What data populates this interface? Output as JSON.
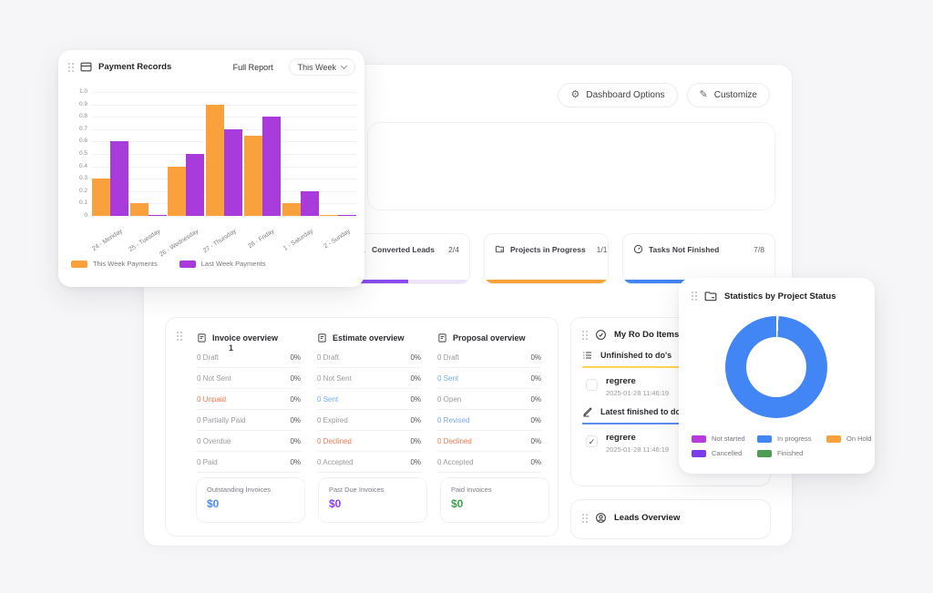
{
  "header_actions": {
    "dashboard_options": "Dashboard Options",
    "customize": "Customize"
  },
  "payment_records": {
    "title": "Payment Records",
    "full_report_label": "Full Report",
    "period_selector": "This Week",
    "chart_data": {
      "type": "bar",
      "categories": [
        "24 - Monday",
        "25 - Tuesday",
        "26 - Wednesday",
        "27 - Thursday",
        "28 - Friday",
        "1 - Saturday",
        "2 - Sunday"
      ],
      "series": [
        {
          "name": "This Week Payments",
          "color": "#F9A13C",
          "values": [
            0.3,
            0.1,
            0.4,
            0.9,
            0.65,
            0.1,
            0.01
          ]
        },
        {
          "name": "Last Week Payments",
          "color": "#A93ADB",
          "values": [
            0.6,
            0.01,
            0.5,
            0.7,
            0.8,
            0.2,
            0.01
          ]
        }
      ],
      "ylim": [
        0,
        1.0
      ],
      "ytick_labels": [
        "0",
        "0.1",
        "0.2",
        "0.3",
        "0.4",
        "0.5",
        "0.6",
        "0.7",
        "0.8",
        "0.9",
        "1.0"
      ],
      "grid": "horizontal",
      "legend_position": "bottom"
    }
  },
  "stat_cards": [
    {
      "label": "Converted Leads",
      "count": "2/4",
      "progress_pct": 50,
      "color": "#8B4BF0",
      "track": "#EDE4FB",
      "icon": "user-icon"
    },
    {
      "label": "Projects in Progress",
      "count": "1/1",
      "progress_pct": 100,
      "color": "#F9A13C",
      "track": "#FDEBD8",
      "icon": "folder-icon"
    },
    {
      "label": "Tasks Not Finished",
      "count": "7/8",
      "progress_pct": 87.5,
      "color": "#4285F4",
      "track": "#D9E7FD",
      "icon": "gauge-icon"
    }
  ],
  "financial_overview": {
    "badge": "1",
    "columns": [
      {
        "title": "Invoice overview",
        "icon": "invoice-icon",
        "rows": [
          {
            "label": "0 Draft",
            "pct": "0%",
            "color": "default"
          },
          {
            "label": "0 Not Sent",
            "pct": "0%",
            "color": "default"
          },
          {
            "label": "0 Unpaid",
            "pct": "0%",
            "color": "orange"
          },
          {
            "label": "0 Partially Paid",
            "pct": "0%",
            "color": "default"
          },
          {
            "label": "0 Overdue",
            "pct": "0%",
            "color": "default"
          },
          {
            "label": "0 Paid",
            "pct": "0%",
            "color": "default"
          }
        ]
      },
      {
        "title": "Estimate overview",
        "icon": "estimate-icon",
        "rows": [
          {
            "label": "0 Draft",
            "pct": "0%",
            "color": "default"
          },
          {
            "label": "0 Not Sent",
            "pct": "0%",
            "color": "default"
          },
          {
            "label": "0 Sent",
            "pct": "0%",
            "color": "blue"
          },
          {
            "label": "0 Expired",
            "pct": "0%",
            "color": "default"
          },
          {
            "label": "0 Declined",
            "pct": "0%",
            "color": "orange"
          },
          {
            "label": "0 Accepted",
            "pct": "0%",
            "color": "default"
          }
        ]
      },
      {
        "title": "Proposal overview",
        "icon": "proposal-icon",
        "rows": [
          {
            "label": "0 Draft",
            "pct": "0%",
            "color": "default"
          },
          {
            "label": "0 Sent",
            "pct": "0%",
            "color": "blue"
          },
          {
            "label": "0 Open",
            "pct": "0%",
            "color": "default"
          },
          {
            "label": "0 Revised",
            "pct": "0%",
            "color": "blue"
          },
          {
            "label": "0 Declined",
            "pct": "0%",
            "color": "orange"
          },
          {
            "label": "0 Accepted",
            "pct": "0%",
            "color": "default"
          }
        ]
      }
    ],
    "summary_boxes": [
      {
        "label": "Outstanding Invoices",
        "value": "$0",
        "color": "#4D8DF7"
      },
      {
        "label": "Past Due Invoices",
        "value": "$0",
        "color": "#8B3DF6"
      },
      {
        "label": "Paid Invoices",
        "value": "$0",
        "color": "#3EA34F"
      }
    ]
  },
  "todo": {
    "title": "My Ro Do Items",
    "sections": [
      {
        "label": "Unfinished to do's",
        "underline_color": "#FFD54F",
        "icon": "list-icon",
        "items": [
          {
            "name": "regrere",
            "date": "2025-01-28 11:46:19",
            "checked": false
          }
        ]
      },
      {
        "label": "Latest finished to do's",
        "underline_color": "#5B8DEF",
        "icon": "pen-icon",
        "items": [
          {
            "name": "regrere",
            "date": "2025-01-28 11:46:19",
            "checked": true
          }
        ]
      }
    ]
  },
  "leads": {
    "title": "Leads Overview"
  },
  "project_statistics": {
    "title": "Statistics by Project Status",
    "chart_data": {
      "type": "pie",
      "slices": [
        {
          "label": "Not started",
          "value": 0,
          "color": "#B93BE0"
        },
        {
          "label": "In progress",
          "value": 1,
          "color": "#4285F4"
        },
        {
          "label": "On Hold",
          "value": 0,
          "color": "#F9A13C"
        },
        {
          "label": "Cancelled",
          "value": 0,
          "color": "#7C3BED"
        },
        {
          "label": "Finished",
          "value": 0,
          "color": "#4F9D55"
        }
      ],
      "legend_position": "bottom"
    }
  }
}
